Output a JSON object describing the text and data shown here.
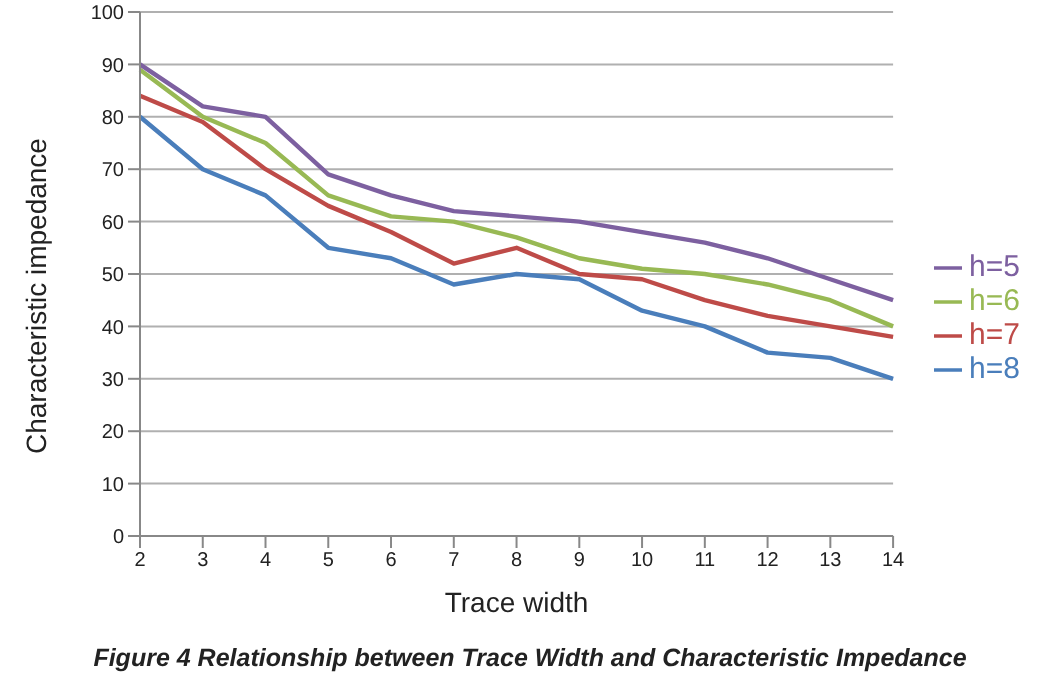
{
  "chart_data": {
    "type": "line",
    "xlabel": "Trace width",
    "ylabel": "Characteristic impedance",
    "annotations": [
      "Figure 4 Relationship between Trace Width and Characteristic Impedance"
    ],
    "categories": [
      "2",
      "3",
      "4",
      "5",
      "6",
      "7",
      "8",
      "9",
      "10",
      "11",
      "12",
      "13",
      "14"
    ],
    "series": [
      {
        "name": "h=8",
        "color": "#4a7ebb",
        "values": [
          80,
          70,
          65,
          55,
          53,
          48,
          50,
          49,
          43,
          40,
          35,
          34,
          30
        ]
      },
      {
        "name": "h=7",
        "color": "#be4b48",
        "values": [
          84,
          79,
          70,
          63,
          58,
          52,
          55,
          50,
          49,
          45,
          42,
          40,
          38
        ]
      },
      {
        "name": "h=6",
        "color": "#98b954",
        "values": [
          89,
          80,
          75,
          65,
          61,
          60,
          57,
          53,
          51,
          50,
          48,
          45,
          40
        ]
      },
      {
        "name": "h=5",
        "color": "#7d60a0",
        "values": [
          90,
          82,
          80,
          69,
          65,
          62,
          61,
          60,
          58,
          56,
          53,
          49,
          45
        ]
      }
    ],
    "ylim": [
      0,
      100
    ],
    "yticks": [
      0,
      10,
      20,
      30,
      40,
      50,
      60,
      70,
      80,
      90,
      100
    ],
    "grid": "y",
    "legend": "right",
    "marker": "none",
    "line_style": "solid"
  }
}
